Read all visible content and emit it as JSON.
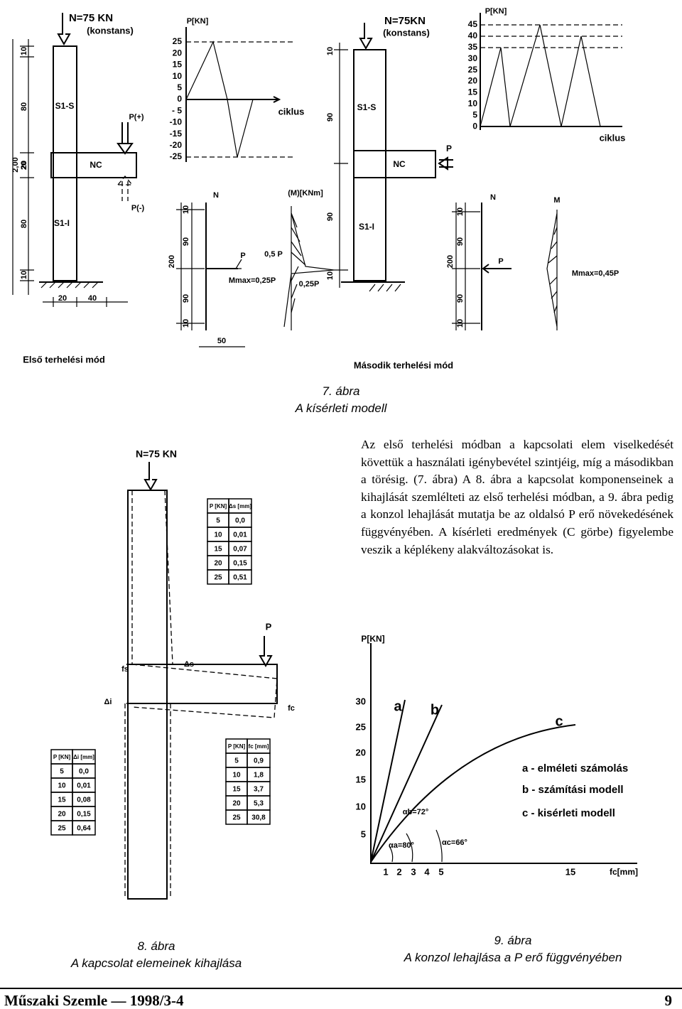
{
  "figure7": {
    "left": {
      "load": "N=75 KN",
      "load_note": "(konstans)",
      "upper": "S1-S",
      "connector": "NC",
      "lower": "S1-I",
      "load_pos": "P(+)",
      "load_neg": "P(-)",
      "dims": [
        "10",
        "80",
        "20",
        "2,00",
        "20",
        "80",
        "10"
      ],
      "base_dims": [
        "20",
        "40"
      ]
    },
    "cycle_left": {
      "axis": "P[KN]",
      "x_label": "ciklus",
      "ticks": [
        "25",
        "20",
        "15",
        "10",
        "5",
        "0",
        "- 5",
        "-10",
        "-15",
        "-20",
        "-25"
      ]
    },
    "model_left": {
      "n": "N",
      "m": "(M)[KNm]",
      "p": "P",
      "half": "0,5 P",
      "mmax": "Mmax=0,25P",
      "quarter": "0,25P",
      "dims": [
        "10",
        "90",
        "200",
        "90",
        "10"
      ],
      "offset": "50"
    },
    "mode_left": "Első terhelési mód",
    "right": {
      "load": "N=75KN",
      "load_note": "(konstans)",
      "upper": "S1-S",
      "connector": "NC",
      "lower": "S1-I",
      "p": "P",
      "dims": [
        "10",
        "90",
        "90",
        "10"
      ]
    },
    "cycle_right": {
      "axis": "P[KN]",
      "x_label": "ciklus",
      "ticks": [
        "45",
        "40",
        "35",
        "30",
        "25",
        "20",
        "15",
        "10",
        "5",
        "0"
      ]
    },
    "model_right": {
      "n": "N",
      "m": "M",
      "p": "P",
      "mmax": "Mmax=0,45P",
      "dims": [
        "10",
        "90",
        "200",
        "90",
        "10"
      ]
    },
    "mode_right": "Második terhelési mód",
    "caption_number": "7. ábra",
    "caption_title": "A kísérleti modell"
  },
  "body_text": "Az első terhelési módban a kapcsolati elem viselkedését követtük a használati igénybevétel szintjéig, míg a másodikban a törésig. (7. ábra) A 8. ábra a kapcsolat komponenseinek a kihajlását szemlélteti az első terhelési módban, a 9. ábra pedig a konzol lehajlását mutatja be az oldalsó P erő növekedésének függvényében. A kísérleti eredmények (C görbe) figyelembe veszik a képlékeny alakváltozásokat is.",
  "figure8": {
    "load": "N=75 KN",
    "p": "P",
    "fs": "fs",
    "delta_s": "Δs",
    "delta_i": "Δi",
    "fc": "fc",
    "table_s": {
      "header": [
        "P [KN]",
        "Δs [mm]"
      ],
      "rows": [
        [
          "5",
          "0,0"
        ],
        [
          "10",
          "0,01"
        ],
        [
          "15",
          "0,07"
        ],
        [
          "20",
          "0,15"
        ],
        [
          "25",
          "0,51"
        ]
      ]
    },
    "table_i": {
      "header": [
        "P [KN]",
        "Δi [mm]"
      ],
      "rows": [
        [
          "5",
          "0,0"
        ],
        [
          "10",
          "0,01"
        ],
        [
          "15",
          "0,08"
        ],
        [
          "20",
          "0,15"
        ],
        [
          "25",
          "0,64"
        ]
      ]
    },
    "table_c": {
      "header": [
        "P [KN]",
        "fc [mm]"
      ],
      "rows": [
        [
          "5",
          "0,9"
        ],
        [
          "10",
          "1,8"
        ],
        [
          "15",
          "3,7"
        ],
        [
          "20",
          "5,3"
        ],
        [
          "25",
          "30,8"
        ]
      ]
    },
    "caption_number": "8. ábra",
    "caption_title": "A kapcsolat elemeinek kihajlása"
  },
  "figure9": {
    "y_axis": "P[KN]",
    "x_axis": "fc[mm]",
    "yticks": [
      "30",
      "25",
      "20",
      "15",
      "10",
      "5"
    ],
    "xticks": [
      "1",
      "2",
      "3",
      "4",
      "5",
      "15"
    ],
    "curves": [
      "a",
      "b",
      "c"
    ],
    "legend": [
      "a - elméleti számolás",
      "b - számítási modell",
      "c - kisérleti modell"
    ],
    "angles": [
      "αb=72°",
      "αa=80°",
      "αc=66°"
    ],
    "caption_number": "9. ábra",
    "caption_title": "A konzol lehajlása a P erő függvényében"
  },
  "footer": {
    "journal": "Műszaki Szemle — 1998/3-4",
    "page": "9"
  }
}
